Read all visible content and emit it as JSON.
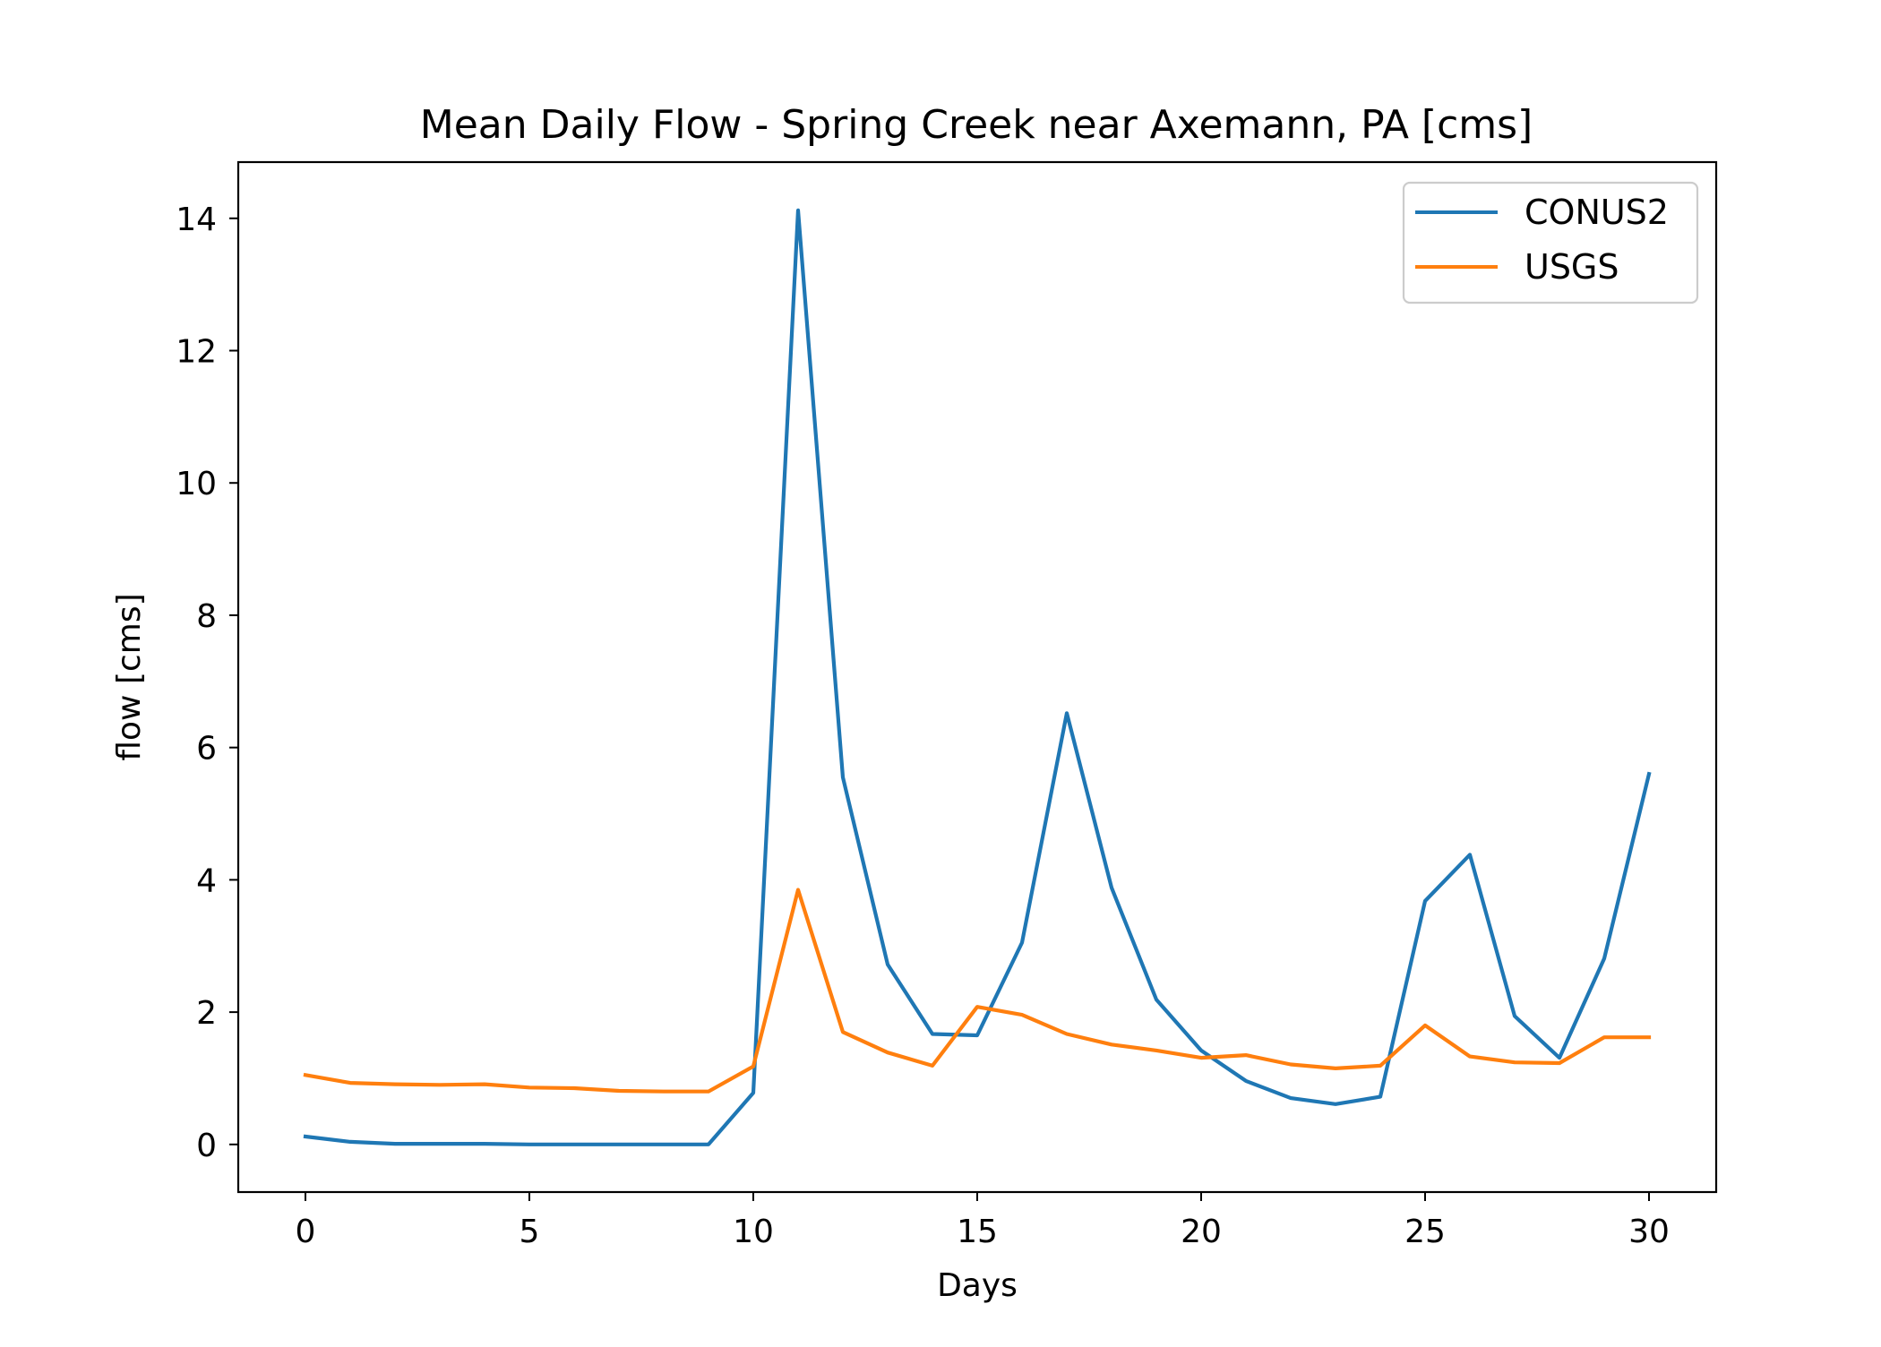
{
  "chart_data": {
    "type": "line",
    "title": "Mean Daily Flow - Spring Creek near Axemann, PA [cms]",
    "xlabel": "Days",
    "ylabel": "flow [cms]",
    "xlim": [
      -1.5,
      31.5
    ],
    "ylim": [
      -0.72,
      14.85
    ],
    "x_ticks": [
      0,
      5,
      10,
      15,
      20,
      25,
      30
    ],
    "y_ticks": [
      0,
      2,
      4,
      6,
      8,
      10,
      12,
      14
    ],
    "grid": false,
    "legend_position": "top-right",
    "x": [
      0,
      1,
      2,
      3,
      4,
      5,
      6,
      7,
      8,
      9,
      10,
      11,
      12,
      13,
      14,
      15,
      16,
      17,
      18,
      19,
      20,
      21,
      22,
      23,
      24,
      25,
      26,
      27,
      28,
      29,
      30
    ],
    "series": [
      {
        "name": "CONUS2",
        "color": "#1f77b4",
        "values": [
          0.12,
          0.04,
          0.01,
          0.01,
          0.01,
          0.0,
          0.0,
          0.0,
          0.0,
          0.0,
          0.78,
          14.12,
          5.55,
          2.72,
          1.67,
          1.65,
          3.05,
          6.52,
          3.88,
          2.19,
          1.42,
          0.96,
          0.7,
          0.61,
          0.72,
          3.68,
          4.38,
          1.94,
          1.31,
          2.81,
          5.6
        ]
      },
      {
        "name": "USGS",
        "color": "#ff7f0e",
        "values": [
          1.05,
          0.93,
          0.91,
          0.9,
          0.91,
          0.86,
          0.85,
          0.81,
          0.8,
          0.8,
          1.18,
          3.85,
          1.7,
          1.39,
          1.19,
          2.08,
          1.96,
          1.67,
          1.51,
          1.42,
          1.31,
          1.35,
          1.21,
          1.15,
          1.19,
          1.8,
          1.33,
          1.24,
          1.23,
          1.62,
          1.62
        ]
      }
    ]
  }
}
